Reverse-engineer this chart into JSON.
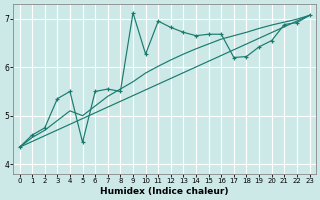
{
  "xlabel": "Humidex (Indice chaleur)",
  "background_color": "#cce9e8",
  "grid_color": "#ffffff",
  "line_color": "#1a7a6e",
  "xlim": [
    -0.5,
    23.5
  ],
  "ylim": [
    3.8,
    7.3
  ],
  "xticks": [
    0,
    1,
    2,
    3,
    4,
    5,
    6,
    7,
    8,
    9,
    10,
    11,
    12,
    13,
    14,
    15,
    16,
    17,
    18,
    19,
    20,
    21,
    22,
    23
  ],
  "yticks": [
    4,
    5,
    6,
    7
  ],
  "trend_straight": {
    "x": [
      0,
      23
    ],
    "y": [
      4.35,
      7.07
    ]
  },
  "trend_curved": {
    "x": [
      0,
      1,
      2,
      3,
      4,
      5,
      6,
      7,
      8,
      9,
      10,
      11,
      12,
      13,
      14,
      15,
      16,
      17,
      18,
      19,
      20,
      21,
      22,
      23
    ],
    "y": [
      4.35,
      4.55,
      4.7,
      4.9,
      5.1,
      5.0,
      5.2,
      5.4,
      5.55,
      5.7,
      5.88,
      6.02,
      6.15,
      6.27,
      6.38,
      6.48,
      6.58,
      6.65,
      6.72,
      6.8,
      6.87,
      6.93,
      6.99,
      7.07
    ]
  },
  "jagged": {
    "x": [
      0,
      1,
      2,
      3,
      4,
      5,
      6,
      7,
      8,
      9,
      10,
      11,
      12,
      13,
      14,
      15,
      16,
      17,
      18,
      19,
      20,
      21,
      22,
      23
    ],
    "y": [
      4.35,
      4.6,
      4.75,
      5.35,
      5.5,
      4.45,
      5.5,
      5.55,
      5.5,
      7.12,
      6.27,
      6.95,
      6.82,
      6.72,
      6.65,
      6.68,
      6.68,
      6.2,
      6.22,
      6.42,
      6.55,
      6.88,
      6.92,
      7.07
    ]
  }
}
